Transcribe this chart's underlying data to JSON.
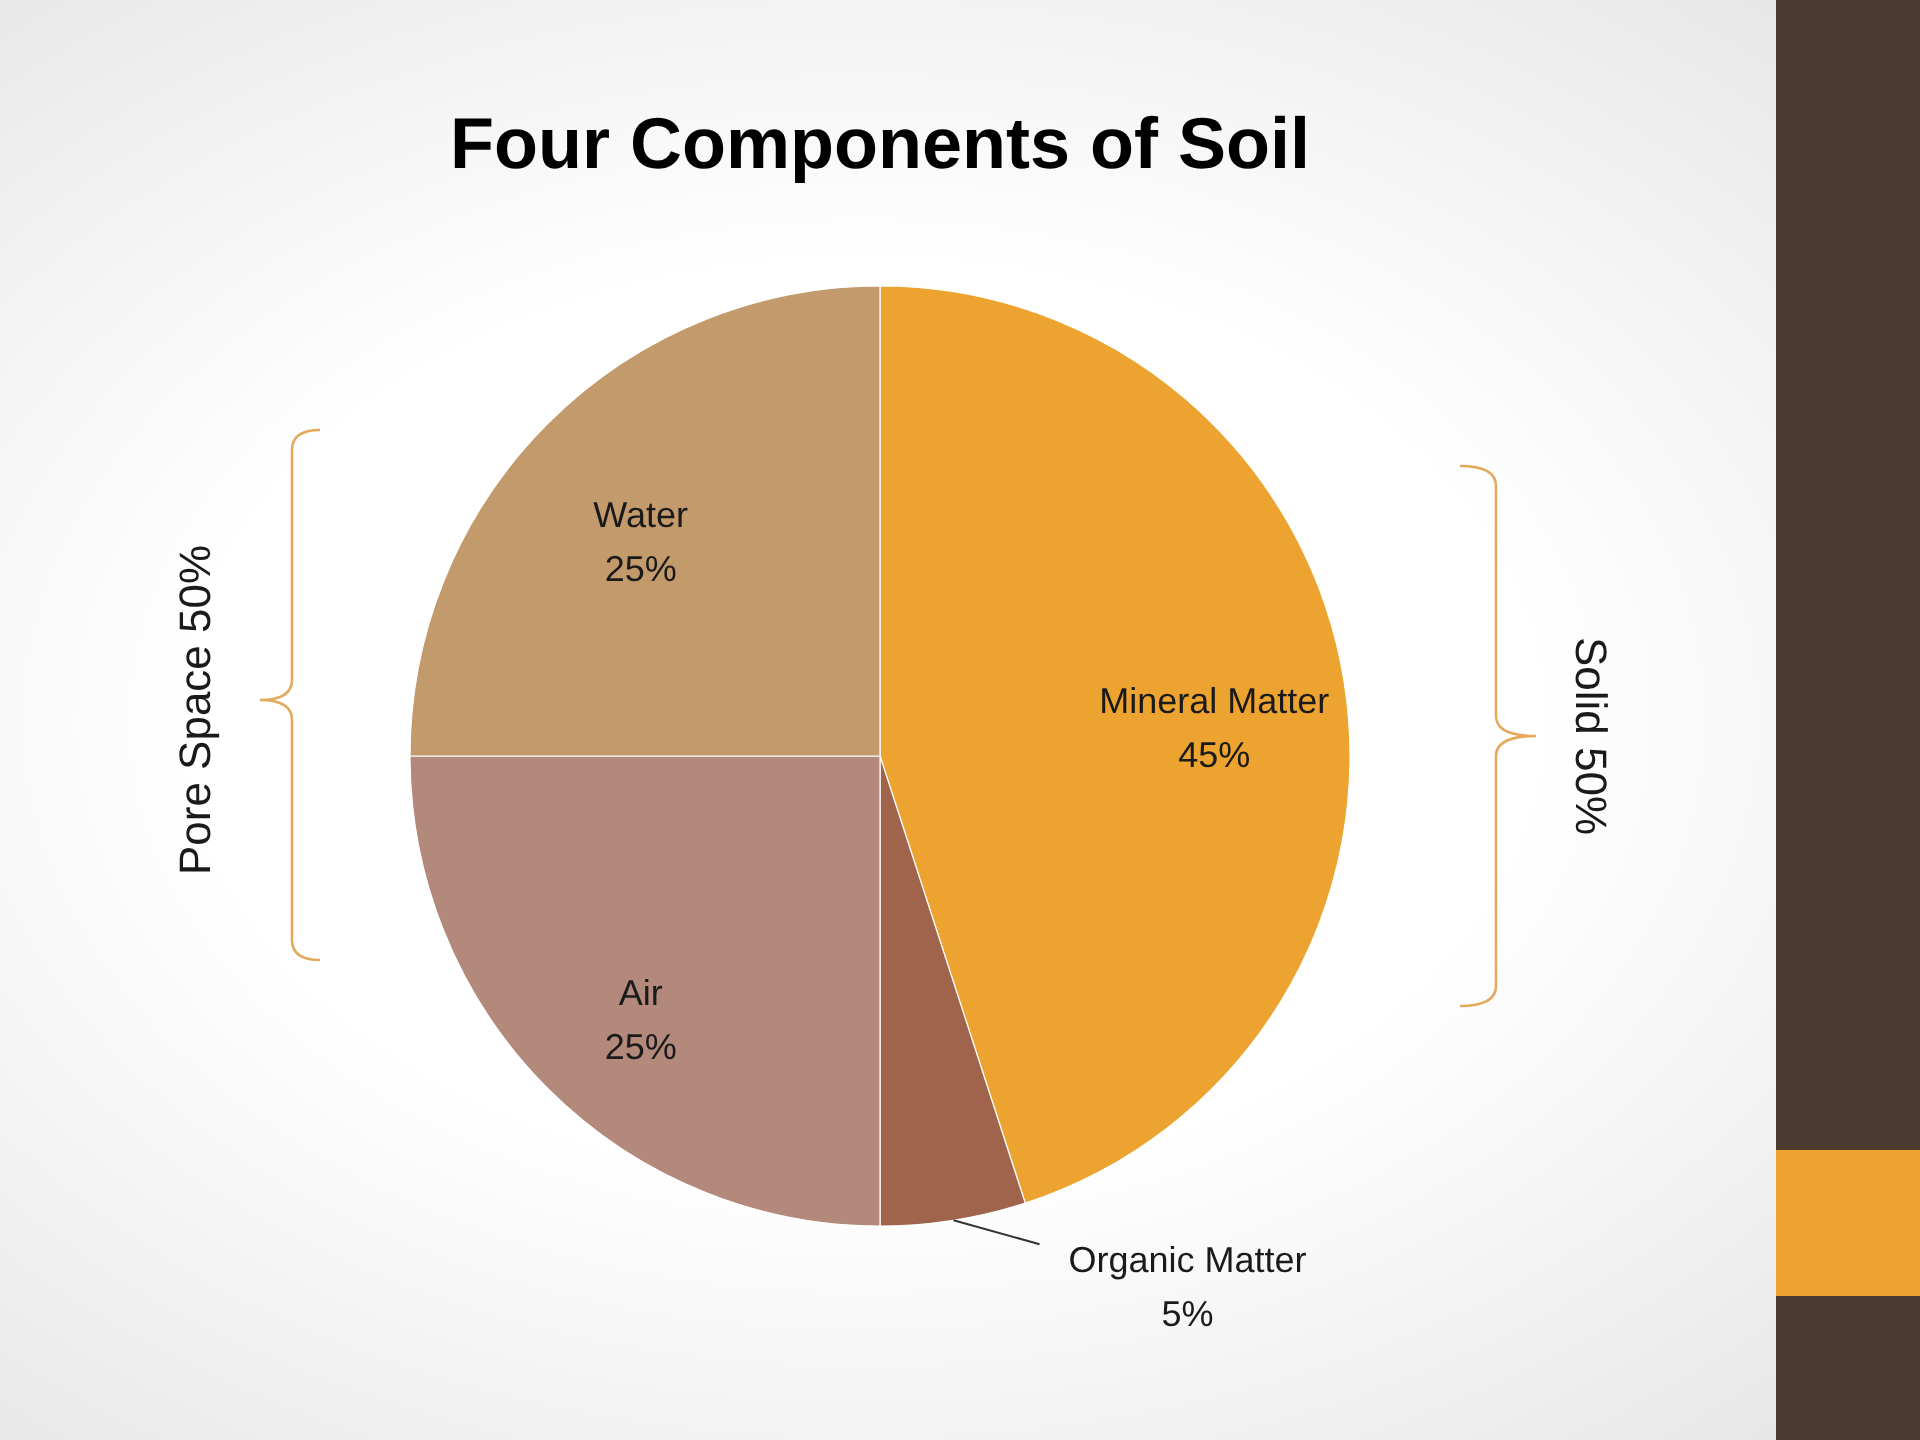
{
  "chart_data": {
    "type": "pie",
    "title": "Four Components of Soil",
    "categories": [
      "Mineral Matter",
      "Organic Matter",
      "Air",
      "Water"
    ],
    "values": [
      45,
      5,
      25,
      25
    ],
    "colors": [
      "#eda32f",
      "#a0644c",
      "#b3897c",
      "#c39a6b"
    ],
    "value_labels": [
      "45%",
      "5%",
      "25%",
      "25%"
    ],
    "annotations": [
      "Pore Space 50%",
      "Solid 50%"
    ]
  }
}
